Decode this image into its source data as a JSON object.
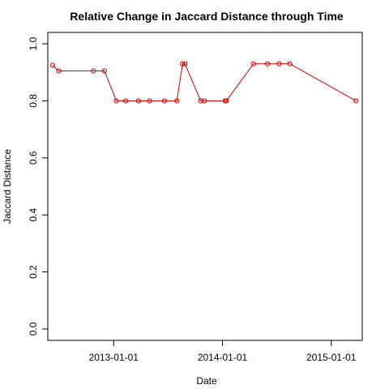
{
  "chart_data": {
    "type": "line",
    "title": "Relative Change in Jaccard Distance through Time",
    "xlabel": "Date",
    "ylabel": "Jaccard Distance",
    "x_type": "date",
    "xlim": [
      "2012-05-25",
      "2015-04-15"
    ],
    "ylim": [
      -0.04,
      1.04
    ],
    "x_ticks": [
      "2013-01-01",
      "2014-01-01",
      "2015-01-01"
    ],
    "y_ticks": [
      "0.0",
      "0.2",
      "0.4",
      "0.6",
      "0.8",
      "1.0"
    ],
    "grid": false,
    "line_color": "#cc0000",
    "marker": "open-circle",
    "series": [
      {
        "x": [
          "2012-06-10",
          "2012-07-01",
          "2012-10-25",
          "2012-12-01",
          "2013-01-10",
          "2013-02-10",
          "2013-03-25",
          "2013-05-01",
          "2013-06-20",
          "2013-08-01",
          "2013-08-20",
          "2013-08-28",
          "2013-10-20",
          "2013-11-01",
          "2014-01-10",
          "2014-01-14",
          "2014-04-15",
          "2014-06-01",
          "2014-07-10",
          "2014-08-15",
          "2015-03-25"
        ],
        "y": [
          0.925,
          0.905,
          0.905,
          0.905,
          0.8,
          0.8,
          0.8,
          0.8,
          0.8,
          0.8,
          0.93,
          0.93,
          0.8,
          0.8,
          0.8,
          0.8,
          0.93,
          0.93,
          0.93,
          0.93,
          0.8
        ]
      }
    ]
  }
}
